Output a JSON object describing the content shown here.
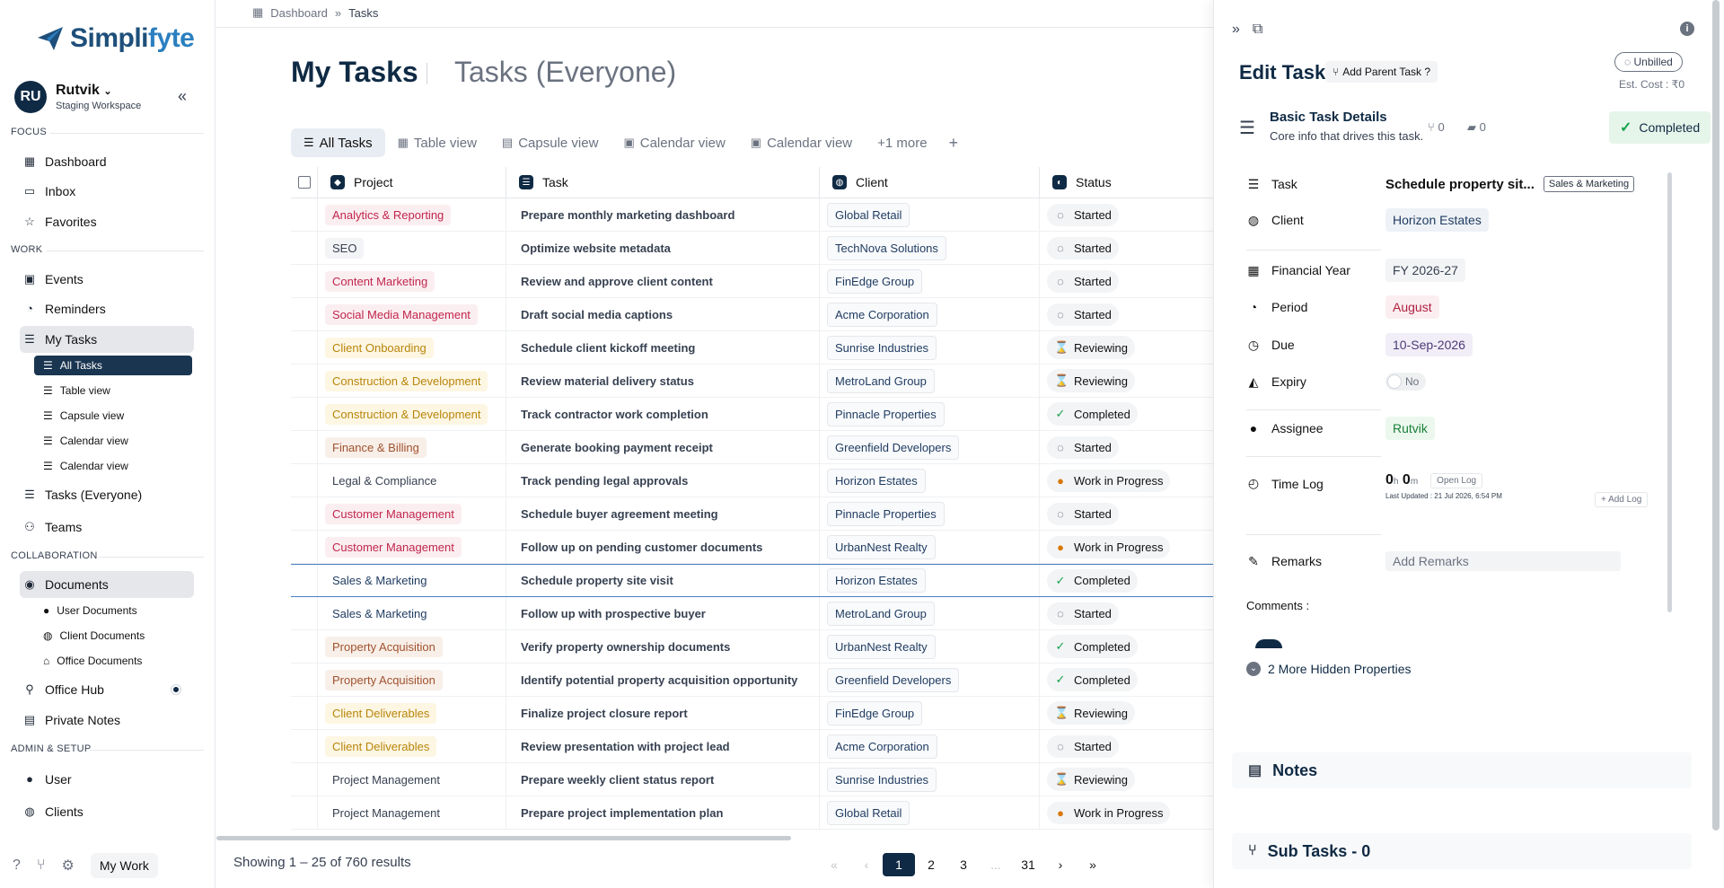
{
  "brand": {
    "logo_text_1": "Simpli",
    "logo_text_2": "fyte"
  },
  "user": {
    "initials": "RU",
    "name": "Rutvik",
    "workspace": "Staging Workspace"
  },
  "sidebar": {
    "focus_label": "FOCUS",
    "focus": [
      {
        "label": "Dashboard",
        "icon": "grid-icon"
      },
      {
        "label": "Inbox",
        "icon": "inbox-icon"
      },
      {
        "label": "Favorites",
        "icon": "star-icon"
      }
    ],
    "work_label": "WORK",
    "work": [
      {
        "label": "Events",
        "icon": "calendar-icon"
      },
      {
        "label": "Reminders",
        "icon": "bell-icon"
      },
      {
        "label": "My Tasks",
        "icon": "tasks-icon"
      }
    ],
    "my_tasks_sub": [
      {
        "label": "All Tasks"
      },
      {
        "label": "Table view"
      },
      {
        "label": "Capsule view"
      },
      {
        "label": "Calendar view"
      },
      {
        "label": "Calendar view"
      }
    ],
    "work2": [
      {
        "label": "Tasks (Everyone)"
      },
      {
        "label": "Teams"
      }
    ],
    "collab_label": "COLLABORATION",
    "documents": "Documents",
    "doc_sub": [
      {
        "label": "User Documents"
      },
      {
        "label": "Client Documents"
      },
      {
        "label": "Office Documents"
      }
    ],
    "office_hub": "Office Hub",
    "private_notes": "Private Notes",
    "admin_label": "ADMIN & SETUP",
    "admin": [
      {
        "label": "User"
      },
      {
        "label": "Clients"
      }
    ],
    "my_work_button": "My Work"
  },
  "breadcrumb": {
    "home": "Dashboard",
    "current": "Tasks"
  },
  "page": {
    "title": "My Tasks",
    "alt_title": "Tasks (Everyone)"
  },
  "view_tabs": [
    {
      "label": "All Tasks"
    },
    {
      "label": "Table view"
    },
    {
      "label": "Capsule view"
    },
    {
      "label": "Calendar view"
    },
    {
      "label": "Calendar view"
    },
    {
      "label": "+1 more"
    }
  ],
  "table": {
    "headers": {
      "project": "Project",
      "task": "Task",
      "client": "Client",
      "status": "Status"
    },
    "rows": [
      {
        "project": "Analytics & Reporting",
        "pcolor": "#c2264b",
        "pbg": "#fbeef1",
        "task": "Prepare monthly marketing dashboard",
        "client": "Global Retail",
        "status": "Started"
      },
      {
        "project": "SEO",
        "pcolor": "#374151",
        "pbg": "#f3f4f6",
        "task": "Optimize website metadata",
        "client": "TechNova Solutions",
        "status": "Started"
      },
      {
        "project": "Content Marketing",
        "pcolor": "#c2264b",
        "pbg": "#fbeef1",
        "task": "Review and approve client content",
        "client": "FinEdge Group",
        "status": "Started"
      },
      {
        "project": "Social Media Management",
        "pcolor": "#c2264b",
        "pbg": "#fbeef1",
        "task": "Draft social media captions",
        "client": "Acme Corporation",
        "status": "Started"
      },
      {
        "project": "Client Onboarding",
        "pcolor": "#b8860b",
        "pbg": "#fdf6e3",
        "task": "Schedule client kickoff meeting",
        "client": "Sunrise Industries",
        "status": "Reviewing"
      },
      {
        "project": "Construction & Development",
        "pcolor": "#b8860b",
        "pbg": "#fdf6e3",
        "task": "Review material delivery status",
        "client": "MetroLand Group",
        "status": "Reviewing"
      },
      {
        "project": "Construction & Development",
        "pcolor": "#b8860b",
        "pbg": "#fdf6e3",
        "task": "Track contractor work completion",
        "client": "Pinnacle Properties",
        "status": "Completed"
      },
      {
        "project": "Finance & Billing",
        "pcolor": "#a0522d",
        "pbg": "#f8efe9",
        "task": "Generate booking payment receipt",
        "client": "Greenfield Developers",
        "status": "Started"
      },
      {
        "project": "Legal & Compliance",
        "pcolor": "#374151",
        "pbg": "#ffffff",
        "task": "Track pending legal approvals",
        "client": "Horizon Estates",
        "status": "Work in Progress"
      },
      {
        "project": "Customer Management",
        "pcolor": "#c2264b",
        "pbg": "#fbeef1",
        "task": "Schedule buyer agreement meeting",
        "client": "Pinnacle Properties",
        "status": "Started"
      },
      {
        "project": "Customer Management",
        "pcolor": "#c2264b",
        "pbg": "#fbeef1",
        "task": "Follow up on pending customer documents",
        "client": "UrbanNest Realty",
        "status": "Work in Progress"
      },
      {
        "project": "Sales & Marketing",
        "pcolor": "#1e3a5f",
        "pbg": "#ffffff",
        "task": "Schedule property site visit",
        "client": "Horizon Estates",
        "status": "Completed"
      },
      {
        "project": "Sales & Marketing",
        "pcolor": "#1e3a5f",
        "pbg": "#ffffff",
        "task": "Follow up with prospective buyer",
        "client": "MetroLand Group",
        "status": "Started"
      },
      {
        "project": "Property Acquisition",
        "pcolor": "#a0522d",
        "pbg": "#f8efe9",
        "task": "Verify property ownership documents",
        "client": "UrbanNest Realty",
        "status": "Completed"
      },
      {
        "project": "Property Acquisition",
        "pcolor": "#a0522d",
        "pbg": "#f8efe9",
        "task": "Identify potential property acquisition opportunity",
        "client": "Greenfield Developers",
        "status": "Completed"
      },
      {
        "project": "Client Deliverables",
        "pcolor": "#b8860b",
        "pbg": "#fdf6e3",
        "task": "Finalize project closure report",
        "client": "FinEdge Group",
        "status": "Reviewing"
      },
      {
        "project": "Client Deliverables",
        "pcolor": "#b8860b",
        "pbg": "#fdf6e3",
        "task": "Review presentation with project lead",
        "client": "Acme Corporation",
        "status": "Started"
      },
      {
        "project": "Project Management",
        "pcolor": "#374151",
        "pbg": "#ffffff",
        "task": "Prepare weekly client status report",
        "client": "Sunrise Industries",
        "status": "Reviewing"
      },
      {
        "project": "Project Management",
        "pcolor": "#374151",
        "pbg": "#ffffff",
        "task": "Prepare project implementation plan",
        "client": "Global Retail",
        "status": "Work in Progress"
      }
    ],
    "selected_row": 11
  },
  "footer": {
    "showing": "Showing 1 – 25 of 760 results",
    "pages": [
      "«",
      "‹",
      "1",
      "2",
      "3",
      "...",
      "31",
      "›",
      "»"
    ],
    "current_page": "1"
  },
  "panel": {
    "title": "Edit Task",
    "parent_btn": "Add Parent Task ?",
    "unbilled": "Unbilled",
    "est_cost": "Est. Cost : ₹0",
    "section_title": "Basic Task Details",
    "section_sub": "Core info that drives this task.",
    "subtask_count": "0",
    "folder_count": "0",
    "status": "Completed",
    "labels": {
      "task": "Task",
      "client": "Client",
      "fy": "Financial Year",
      "period": "Period",
      "due": "Due",
      "expiry": "Expiry",
      "assignee": "Assignee",
      "timelog": "Time Log",
      "remarks": "Remarks"
    },
    "values": {
      "task": "Schedule property sit...",
      "task_tag": "Sales & Marketing",
      "client": "Horizon Estates",
      "fy": "FY 2026-27",
      "period": "August",
      "due": "10-Sep-2026",
      "expiry": "No",
      "assignee": "Rutvik",
      "time_h": "0",
      "time_h_unit": "h",
      "time_m": "0",
      "time_m_unit": "m",
      "open_log": "Open Log",
      "last_updated": "Last Updated : 21 Jul 2026, 6:54 PM",
      "add_log": "+ Add Log",
      "remarks_placeholder": "Add Remarks"
    },
    "comments_label": "Comments :",
    "hidden_props": "2 More Hidden Properties",
    "notes": "Notes",
    "subtasks": "Sub Tasks - 0"
  }
}
